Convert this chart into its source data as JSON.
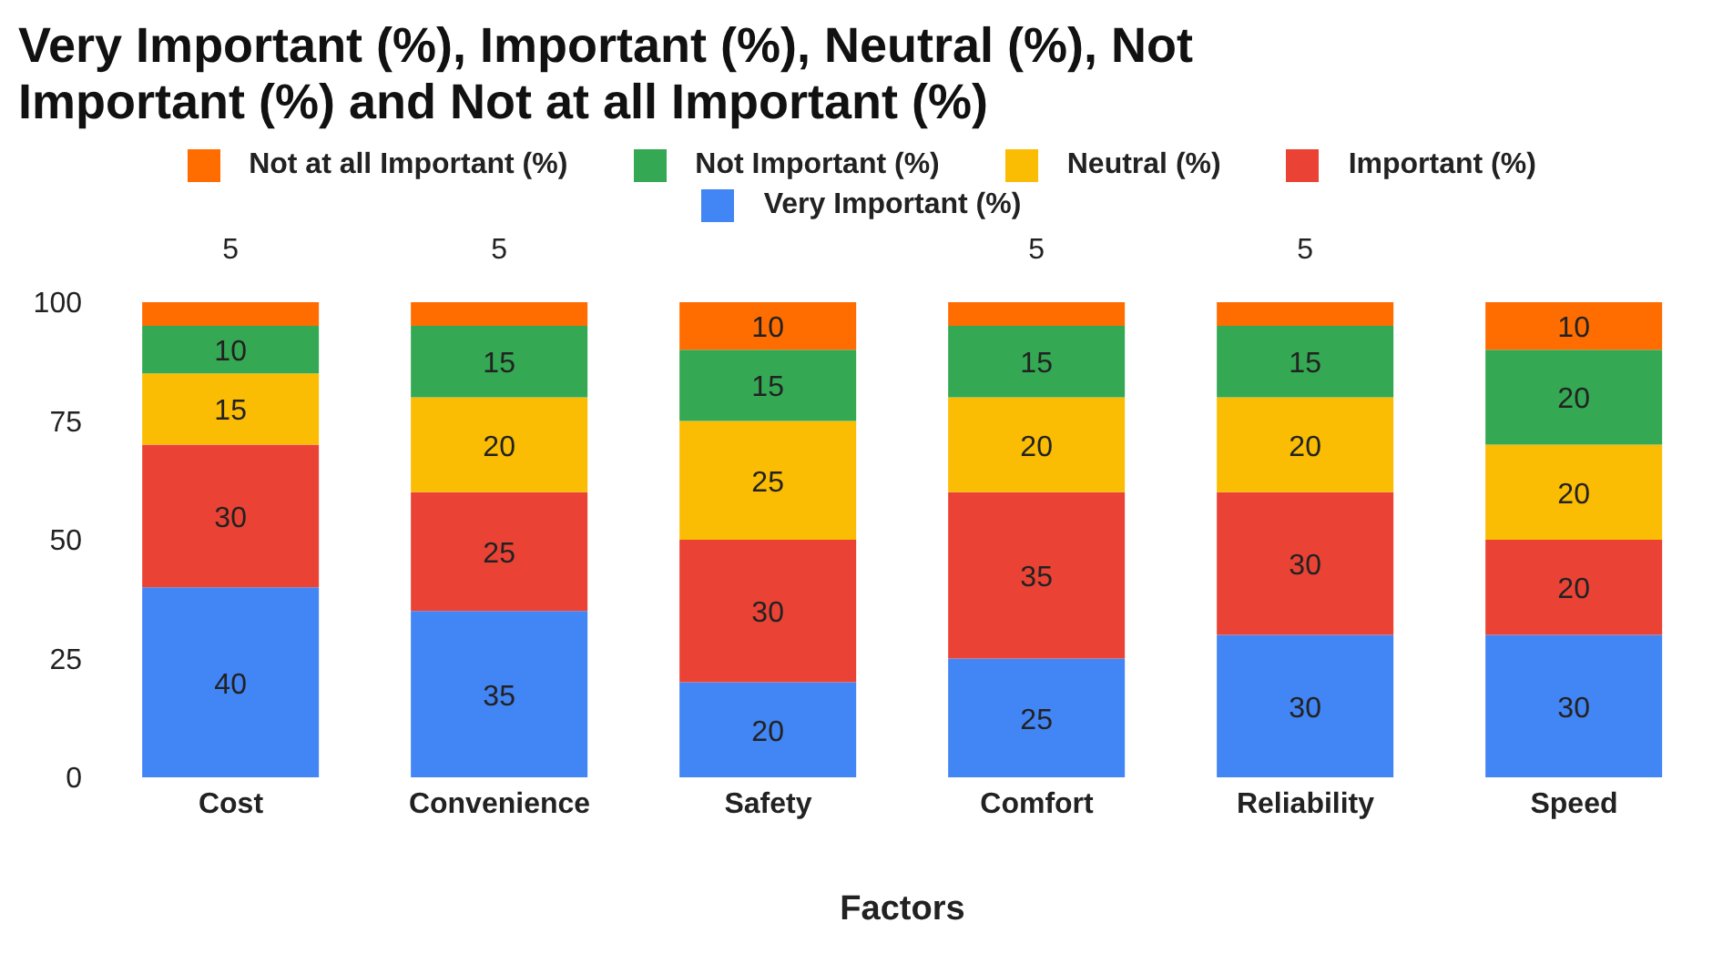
{
  "chart_data": {
    "type": "bar",
    "stacked": true,
    "title": "Very Important (%), Important (%), Neutral (%), Not Important (%) and Not at all Important (%)",
    "xlabel": "Factors",
    "categories": [
      "Cost",
      "Convenience",
      "Safety",
      "Comfort",
      "Reliability",
      "Speed"
    ],
    "series": [
      {
        "name": "Very Important (%)",
        "color": "#4285f4",
        "values": [
          40,
          35,
          20,
          25,
          30,
          30
        ]
      },
      {
        "name": "Important (%)",
        "color": "#ea4335",
        "values": [
          30,
          25,
          30,
          35,
          30,
          20
        ]
      },
      {
        "name": "Neutral (%)",
        "color": "#fbbc04",
        "values": [
          15,
          20,
          25,
          20,
          20,
          20
        ]
      },
      {
        "name": "Not Important (%)",
        "color": "#34a853",
        "values": [
          10,
          15,
          15,
          15,
          15,
          20
        ]
      },
      {
        "name": "Not at all Important (%)",
        "color": "#ff6d01",
        "values": [
          5,
          5,
          10,
          5,
          5,
          10
        ]
      }
    ],
    "ylim": [
      0,
      100
    ],
    "yticks": [
      0,
      25,
      50,
      75,
      100
    ],
    "grid": false,
    "legend": "top",
    "data_labels": true
  }
}
